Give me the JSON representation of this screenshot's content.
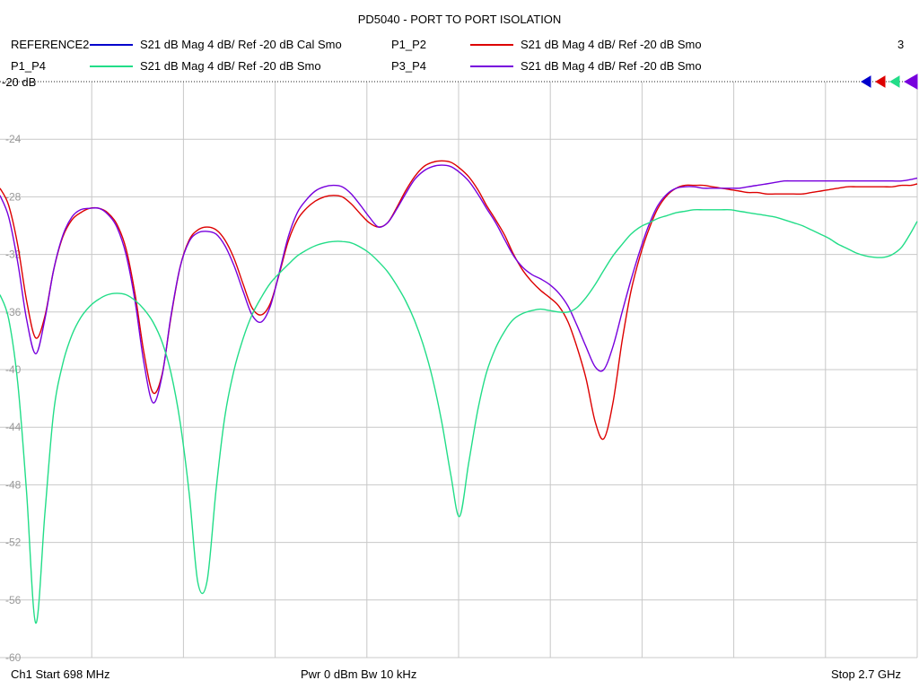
{
  "title": "PD5040 - PORT TO PORT ISOLATION",
  "marker_number": "3",
  "ref_label": "-20 dB",
  "legend": [
    {
      "name": "REFERENCE2",
      "desc": "S21  dB Mag  4 dB/ Ref -20 dB  Cal Smo",
      "color": "#0000cc"
    },
    {
      "name": "P1_P2",
      "desc": "S21  dB Mag  4 dB/ Ref -20 dB  Smo",
      "color": "#dd0000"
    },
    {
      "name": "P1_P4",
      "desc": "S21  dB Mag  4 dB/ Ref -20 dB  Smo",
      "color": "#22dd88"
    },
    {
      "name": "P3_P4",
      "desc": "S21  dB Mag  4 dB/ Ref -20 dB  Smo",
      "color": "#7700dd"
    }
  ],
  "footer": {
    "left": "Ch1  Start  698 MHz",
    "center": "Pwr  0 dBm  Bw  10 kHz",
    "right": "Stop  2.7 GHz"
  },
  "chart_data": {
    "type": "line",
    "title": "PD5040 - PORT TO PORT ISOLATION",
    "xlabel": "",
    "ylabel": "",
    "xlim": [
      698,
      2700
    ],
    "x_unit": "MHz",
    "ylim": [
      -60,
      -20
    ],
    "yticks": [
      -20,
      -24,
      -28,
      -32,
      -36,
      -40,
      -44,
      -48,
      -52,
      -56,
      -60
    ],
    "ytick_labels": [
      "-20",
      "-24",
      "-28",
      "-32",
      "-36",
      "-40",
      "-44",
      "-48",
      "-52",
      "-56",
      "-60"
    ],
    "grid": true,
    "series": [
      {
        "name": "P1_P2",
        "color": "#dd0000",
        "x": [
          698,
          717,
          737,
          756,
          776,
          796,
          815,
          835,
          855,
          874,
          894,
          914,
          933,
          953,
          973,
          993,
          1012,
          1032,
          1052,
          1071,
          1091,
          1111,
          1130,
          1150,
          1170,
          1189,
          1209,
          1229,
          1248,
          1268,
          1288,
          1308,
          1327,
          1347,
          1367,
          1386,
          1406,
          1426,
          1445,
          1465,
          1485,
          1504,
          1524,
          1544,
          1563,
          1583,
          1603,
          1623,
          1642,
          1662,
          1682,
          1701,
          1721,
          1741,
          1760,
          1780,
          1800,
          1819,
          1839,
          1859,
          1878,
          1898,
          1918,
          1938,
          1957,
          1977,
          1997,
          2016,
          2036,
          2056,
          2075,
          2095,
          2115,
          2134,
          2154,
          2174,
          2193,
          2213,
          2233,
          2253,
          2272,
          2292,
          2312,
          2331,
          2351,
          2371,
          2390,
          2410,
          2430,
          2449,
          2469,
          2489,
          2508,
          2528,
          2548,
          2567,
          2587,
          2607,
          2627,
          2646,
          2666,
          2686,
          2700
        ],
        "y": [
          -27.4,
          -28.6,
          -31.4,
          -35.2,
          -37.8,
          -36.3,
          -33.1,
          -30.8,
          -29.6,
          -29.1,
          -28.8,
          -28.8,
          -29.1,
          -29.9,
          -31.6,
          -34.8,
          -38.8,
          -41.6,
          -40.3,
          -36.4,
          -32.9,
          -31.0,
          -30.3,
          -30.1,
          -30.3,
          -31.0,
          -32.3,
          -34.1,
          -35.7,
          -36.2,
          -35.4,
          -33.3,
          -31.1,
          -29.6,
          -28.8,
          -28.3,
          -28.0,
          -27.9,
          -28.0,
          -28.5,
          -29.2,
          -29.8,
          -30.1,
          -29.8,
          -28.8,
          -27.6,
          -26.6,
          -25.9,
          -25.6,
          -25.5,
          -25.6,
          -26.0,
          -26.6,
          -27.5,
          -28.6,
          -29.6,
          -30.7,
          -32.0,
          -33.1,
          -33.9,
          -34.5,
          -35.0,
          -35.6,
          -36.7,
          -38.4,
          -40.6,
          -43.6,
          -44.8,
          -42.3,
          -38.0,
          -34.6,
          -32.1,
          -30.2,
          -28.8,
          -27.9,
          -27.4,
          -27.2,
          -27.2,
          -27.2,
          -27.3,
          -27.4,
          -27.5,
          -27.6,
          -27.7,
          -27.7,
          -27.8,
          -27.8,
          -27.8,
          -27.8,
          -27.8,
          -27.7,
          -27.6,
          -27.5,
          -27.4,
          -27.3,
          -27.3,
          -27.3,
          -27.3,
          -27.3,
          -27.3,
          -27.2,
          -27.2,
          -27.1
        ]
      },
      {
        "name": "P3_P4",
        "color": "#7700dd",
        "x": [
          698,
          717,
          737,
          756,
          776,
          796,
          815,
          835,
          855,
          874,
          894,
          914,
          933,
          953,
          973,
          993,
          1012,
          1032,
          1052,
          1071,
          1091,
          1111,
          1130,
          1150,
          1170,
          1189,
          1209,
          1229,
          1248,
          1268,
          1288,
          1308,
          1327,
          1347,
          1367,
          1386,
          1406,
          1426,
          1445,
          1465,
          1485,
          1504,
          1524,
          1544,
          1563,
          1583,
          1603,
          1623,
          1642,
          1662,
          1682,
          1701,
          1721,
          1741,
          1760,
          1780,
          1800,
          1819,
          1839,
          1859,
          1878,
          1898,
          1918,
          1938,
          1957,
          1977,
          1997,
          2016,
          2036,
          2056,
          2075,
          2095,
          2115,
          2134,
          2154,
          2174,
          2193,
          2213,
          2233,
          2253,
          2272,
          2292,
          2312,
          2331,
          2351,
          2371,
          2390,
          2410,
          2430,
          2449,
          2469,
          2489,
          2508,
          2528,
          2548,
          2567,
          2587,
          2607,
          2627,
          2646,
          2666,
          2686,
          2700
        ],
        "y": [
          -27.9,
          -29.4,
          -32.6,
          -36.5,
          -38.9,
          -36.5,
          -33.1,
          -30.7,
          -29.4,
          -28.9,
          -28.8,
          -28.8,
          -29.2,
          -30.1,
          -32.0,
          -35.3,
          -39.5,
          -42.3,
          -40.4,
          -36.3,
          -32.9,
          -31.1,
          -30.5,
          -30.4,
          -30.6,
          -31.4,
          -32.8,
          -34.6,
          -36.2,
          -36.7,
          -35.6,
          -33.2,
          -30.8,
          -29.1,
          -28.2,
          -27.6,
          -27.3,
          -27.2,
          -27.3,
          -27.8,
          -28.6,
          -29.4,
          -30.1,
          -29.8,
          -28.9,
          -27.8,
          -26.8,
          -26.2,
          -25.9,
          -25.8,
          -25.9,
          -26.3,
          -26.9,
          -27.8,
          -28.8,
          -29.8,
          -31.0,
          -32.1,
          -32.9,
          -33.4,
          -33.7,
          -34.1,
          -34.7,
          -35.6,
          -36.9,
          -38.4,
          -39.8,
          -40.0,
          -38.4,
          -36.0,
          -33.8,
          -31.7,
          -29.9,
          -28.6,
          -27.8,
          -27.4,
          -27.3,
          -27.3,
          -27.4,
          -27.4,
          -27.4,
          -27.4,
          -27.4,
          -27.3,
          -27.2,
          -27.1,
          -27.0,
          -26.9,
          -26.9,
          -26.9,
          -26.9,
          -26.9,
          -26.9,
          -26.9,
          -26.9,
          -26.9,
          -26.9,
          -26.9,
          -26.9,
          -26.9,
          -26.9,
          -26.8,
          -26.7
        ]
      },
      {
        "name": "P1_P4",
        "color": "#22dd88",
        "x": [
          698,
          717,
          737,
          756,
          776,
          796,
          815,
          835,
          855,
          874,
          894,
          914,
          933,
          953,
          973,
          993,
          1012,
          1032,
          1052,
          1071,
          1091,
          1111,
          1130,
          1150,
          1170,
          1189,
          1209,
          1229,
          1248,
          1268,
          1288,
          1308,
          1327,
          1347,
          1367,
          1386,
          1406,
          1426,
          1445,
          1465,
          1485,
          1504,
          1524,
          1544,
          1563,
          1583,
          1603,
          1623,
          1642,
          1662,
          1682,
          1701,
          1721,
          1741,
          1760,
          1780,
          1800,
          1819,
          1839,
          1859,
          1878,
          1898,
          1918,
          1938,
          1957,
          1977,
          1997,
          2016,
          2036,
          2056,
          2075,
          2095,
          2115,
          2134,
          2154,
          2174,
          2193,
          2213,
          2233,
          2253,
          2272,
          2292,
          2312,
          2331,
          2351,
          2371,
          2390,
          2410,
          2430,
          2449,
          2469,
          2489,
          2508,
          2528,
          2548,
          2567,
          2587,
          2607,
          2627,
          2646,
          2666,
          2686,
          2700
        ],
        "y": [
          -34.8,
          -36.5,
          -41.0,
          -48.5,
          -57.6,
          -50.0,
          -43.0,
          -39.6,
          -37.6,
          -36.4,
          -35.6,
          -35.1,
          -34.8,
          -34.7,
          -34.8,
          -35.2,
          -35.8,
          -36.7,
          -38.1,
          -40.2,
          -43.6,
          -48.6,
          -54.8,
          -54.7,
          -48.2,
          -43.2,
          -40.0,
          -37.8,
          -36.2,
          -35.0,
          -34.0,
          -33.3,
          -32.7,
          -32.1,
          -31.7,
          -31.4,
          -31.2,
          -31.1,
          -31.1,
          -31.2,
          -31.5,
          -31.9,
          -32.5,
          -33.2,
          -34.1,
          -35.2,
          -36.6,
          -38.4,
          -40.6,
          -43.6,
          -47.3,
          -50.2,
          -46.5,
          -42.8,
          -40.2,
          -38.5,
          -37.3,
          -36.5,
          -36.1,
          -35.9,
          -35.8,
          -35.9,
          -36.0,
          -36.0,
          -35.7,
          -35.0,
          -34.1,
          -33.1,
          -32.1,
          -31.3,
          -30.6,
          -30.1,
          -29.8,
          -29.5,
          -29.3,
          -29.1,
          -29.0,
          -28.9,
          -28.9,
          -28.9,
          -28.9,
          -28.9,
          -29.0,
          -29.1,
          -29.2,
          -29.3,
          -29.4,
          -29.6,
          -29.8,
          -30.0,
          -30.3,
          -30.6,
          -30.9,
          -31.3,
          -31.6,
          -31.9,
          -32.1,
          -32.2,
          -32.2,
          -32.0,
          -31.5,
          -30.5,
          -29.7
        ]
      }
    ]
  }
}
